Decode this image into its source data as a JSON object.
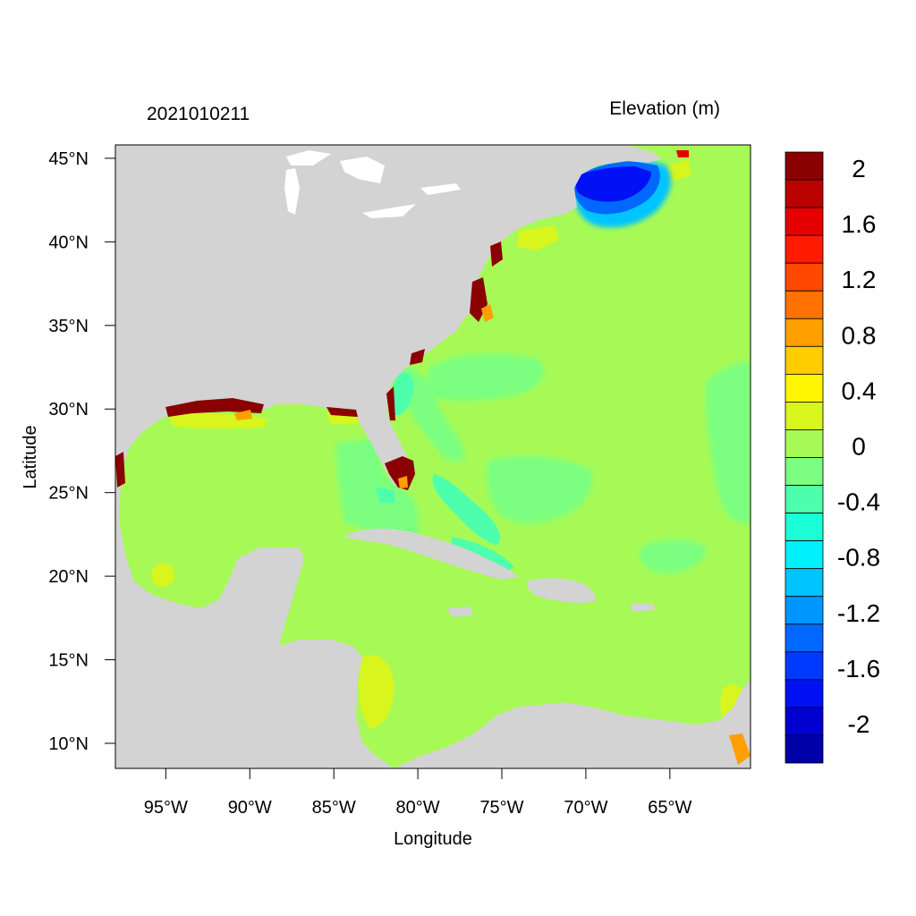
{
  "plot": {
    "time_label": "2021010211",
    "variable_label": "Elevation (m)",
    "xlabel": "Longitude",
    "ylabel": "Latitude"
  },
  "axes": {
    "lon_range": [
      -98,
      -60.2
    ],
    "lat_range": [
      8.5,
      45.8
    ],
    "x_ticks": [
      {
        "value": -95,
        "label": "95°W"
      },
      {
        "value": -90,
        "label": "90°W"
      },
      {
        "value": -85,
        "label": "85°W"
      },
      {
        "value": -80,
        "label": "80°W"
      },
      {
        "value": -75,
        "label": "75°W"
      },
      {
        "value": -70,
        "label": "70°W"
      },
      {
        "value": -65,
        "label": "65°W"
      }
    ],
    "y_ticks": [
      {
        "value": 45,
        "label": "45°N"
      },
      {
        "value": 40,
        "label": "40°N"
      },
      {
        "value": 35,
        "label": "35°N"
      },
      {
        "value": 30,
        "label": "30°N"
      },
      {
        "value": 25,
        "label": "25°N"
      },
      {
        "value": 20,
        "label": "20°N"
      },
      {
        "value": 15,
        "label": "15°N"
      },
      {
        "value": 10,
        "label": "10°N"
      }
    ]
  },
  "colorbar": {
    "colors_top_to_bottom": [
      "#8b0000",
      "#bb0000",
      "#e50000",
      "#ff1a00",
      "#ff4800",
      "#ff7200",
      "#ff9f00",
      "#ffcc00",
      "#fff500",
      "#d8f51e",
      "#a7fa55",
      "#7cff80",
      "#4dffad",
      "#1affd8",
      "#00f0ff",
      "#00c4ff",
      "#0096ff",
      "#0068ff",
      "#003aff",
      "#0010f5",
      "#0000d0",
      "#0000a8"
    ],
    "labels": [
      {
        "value": 2,
        "label": "2"
      },
      {
        "value": 1.6,
        "label": "1.6"
      },
      {
        "value": 1.2,
        "label": "1.2"
      },
      {
        "value": 0.8,
        "label": "0.8"
      },
      {
        "value": 0.4,
        "label": "0.4"
      },
      {
        "value": 0,
        "label": "0"
      },
      {
        "value": -0.4,
        "label": "-0.4"
      },
      {
        "value": -0.8,
        "label": "-0.8"
      },
      {
        "value": -1.2,
        "label": "-1.2"
      },
      {
        "value": -1.6,
        "label": "-1.6"
      },
      {
        "value": -2,
        "label": "-2"
      }
    ]
  },
  "colors": {
    "land": "#d3d3d3",
    "ocean_base": "#a7fa55",
    "slight_negative": "#7cff80",
    "negative": "#4dffad",
    "strong_negative": "#0010f5",
    "positive": "#d8f51e",
    "surge": "#8b0000",
    "lake": "#ffffff"
  }
}
